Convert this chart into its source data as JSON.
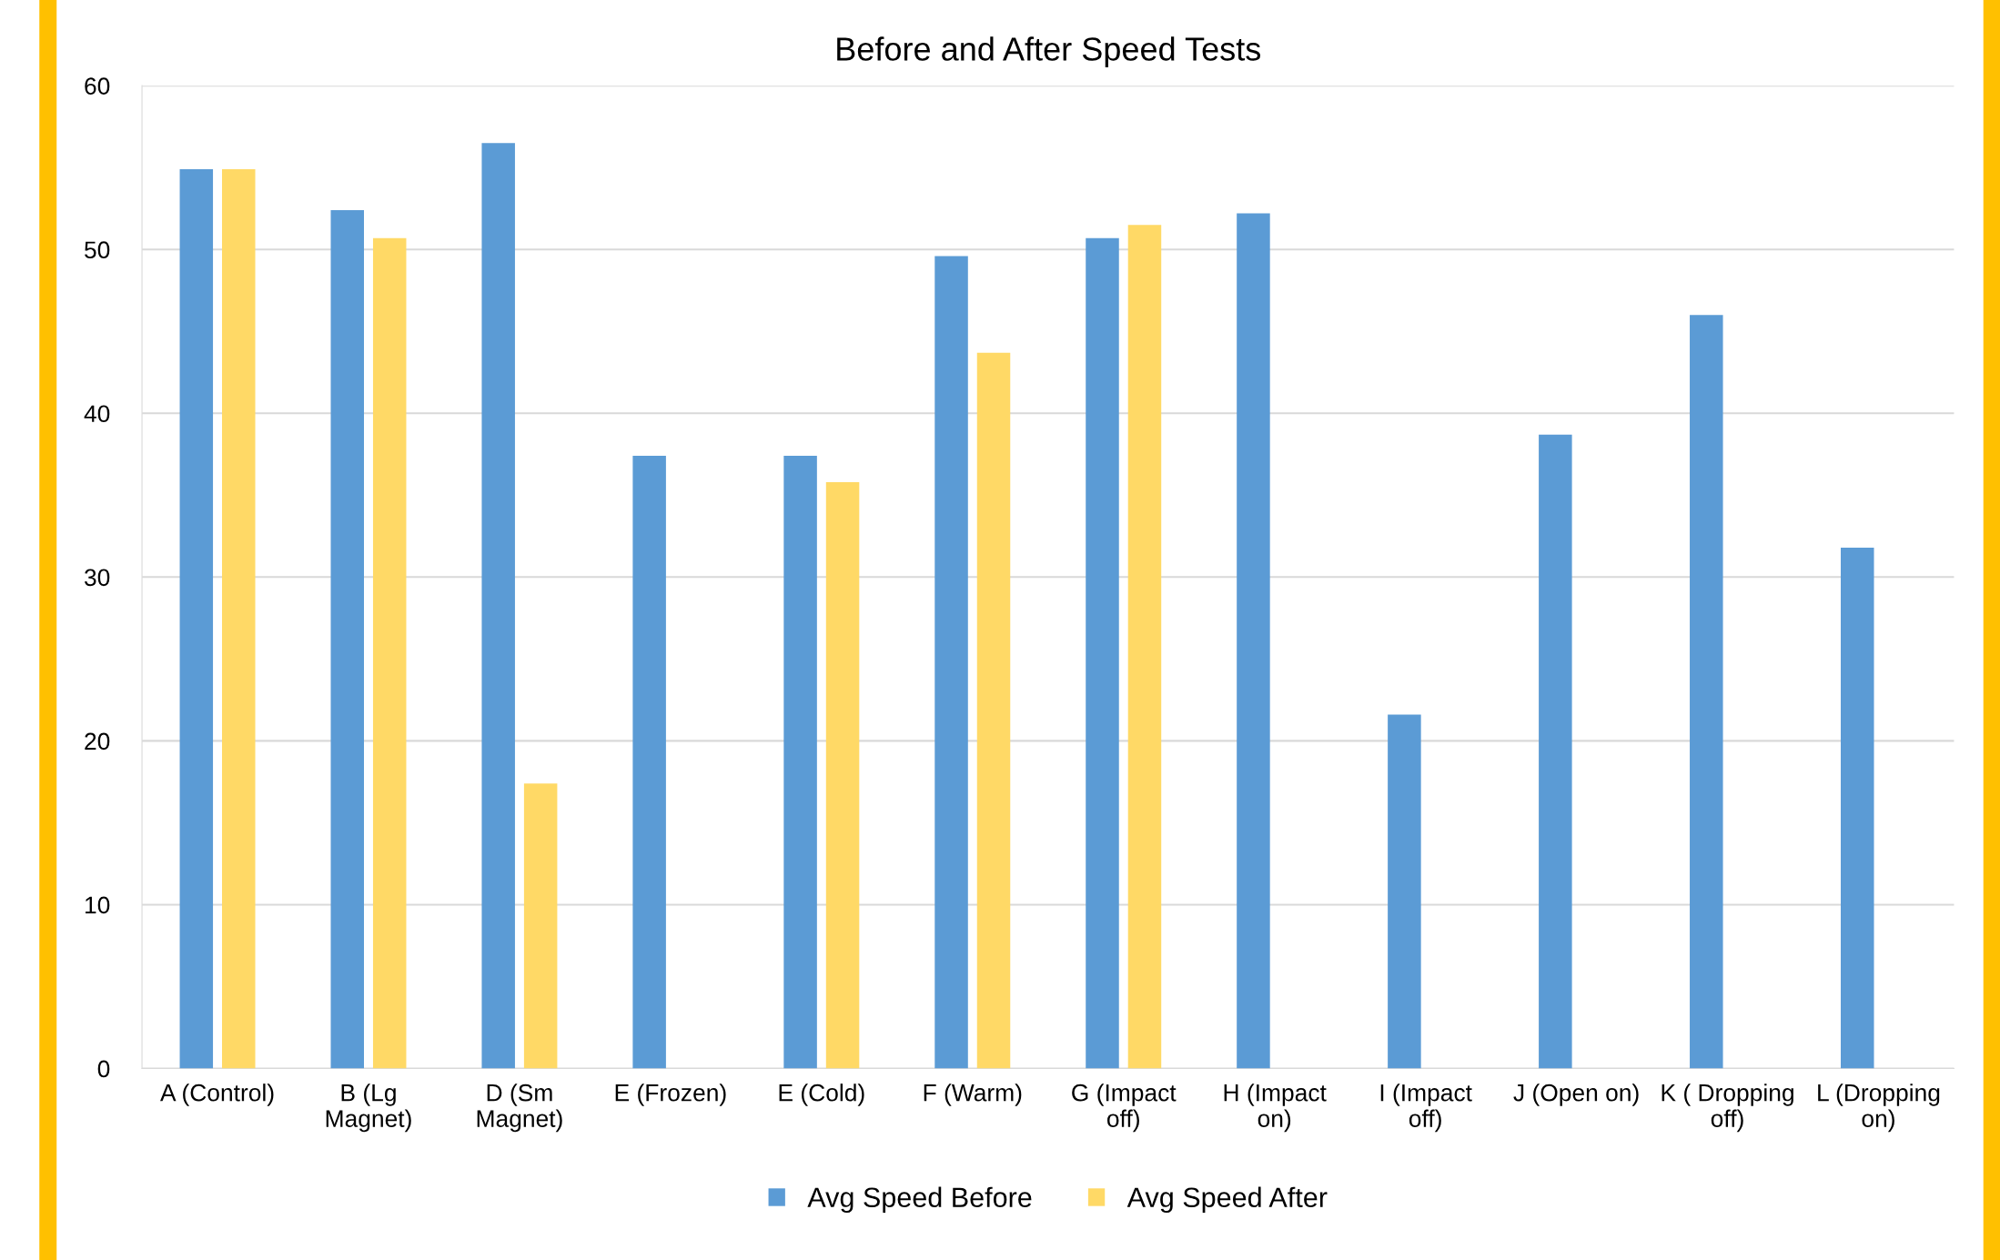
{
  "chart_data": {
    "type": "bar",
    "title": "Before and After Speed Tests",
    "categories": [
      "A (Control)",
      "B (Lg Magnet)",
      "D (Sm Magnet)",
      "E (Frozen)",
      "E (Cold)",
      "F (Warm)",
      "G (Impact off)",
      "H (Impact on)",
      "I (Impact off)",
      "J (Open on)",
      "K ( Dropping off)",
      "L (Dropping on)"
    ],
    "series": [
      {
        "name": "Avg Speed Before",
        "color": "#5b9bd5",
        "values": [
          54.9,
          52.4,
          56.5,
          37.4,
          37.4,
          49.6,
          50.7,
          52.2,
          21.6,
          38.7,
          46.0,
          31.8
        ]
      },
      {
        "name": "Avg Speed After",
        "color": "#ffd966",
        "values": [
          54.9,
          50.7,
          17.4,
          null,
          35.8,
          43.7,
          51.5,
          null,
          null,
          null,
          null,
          null
        ]
      }
    ],
    "ylim": [
      0,
      60
    ],
    "yticks": [
      0,
      10,
      20,
      30,
      40,
      50,
      60
    ],
    "grid": "y",
    "legend": "bottom"
  }
}
